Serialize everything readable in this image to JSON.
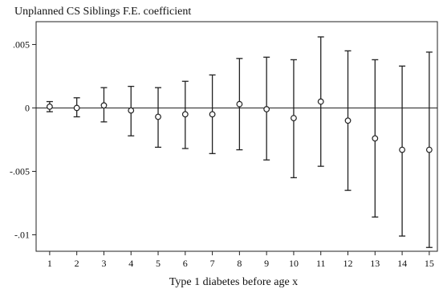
{
  "chart_data": {
    "type": "scatter",
    "title": "Unplanned CS Siblings F.E. coefficient",
    "xlabel": "Type 1 diabetes before age x",
    "ylabel": "",
    "x": [
      1,
      2,
      3,
      4,
      5,
      6,
      7,
      8,
      9,
      10,
      11,
      12,
      13,
      14,
      15
    ],
    "x_tick_labels": [
      "1",
      "2",
      "3",
      "4",
      "5",
      "6",
      "7",
      "8",
      "9",
      "10",
      "11",
      "12",
      "13",
      "14",
      "15"
    ],
    "y_ticks": [
      0.005,
      0,
      -0.005,
      -0.01
    ],
    "y_tick_labels": [
      ".005",
      "0",
      "-.005",
      "-.01"
    ],
    "ylim": [
      -0.0113,
      0.0068
    ],
    "xlim": [
      0.5,
      15.3
    ],
    "reference_line": 0,
    "series": [
      {
        "point_estimate": [
          0.0001,
          0.0,
          0.0002,
          -0.0002,
          -0.0007,
          -0.0005,
          -0.0005,
          0.0003,
          -0.0001,
          -0.0008,
          0.0005,
          -0.001,
          -0.0024,
          -0.0033,
          -0.0033
        ],
        "ci_lower": [
          -0.0003,
          -0.0007,
          -0.0011,
          -0.0022,
          -0.0031,
          -0.0032,
          -0.0036,
          -0.0033,
          -0.0041,
          -0.0055,
          -0.0046,
          -0.0065,
          -0.0086,
          -0.0101,
          -0.011
        ],
        "ci_upper": [
          0.0005,
          0.0008,
          0.0016,
          0.0017,
          0.0016,
          0.0021,
          0.0026,
          0.0039,
          0.004,
          0.0038,
          0.0056,
          0.0045,
          0.0038,
          0.0033,
          0.0044
        ]
      }
    ],
    "grid": false,
    "legend": "none"
  }
}
